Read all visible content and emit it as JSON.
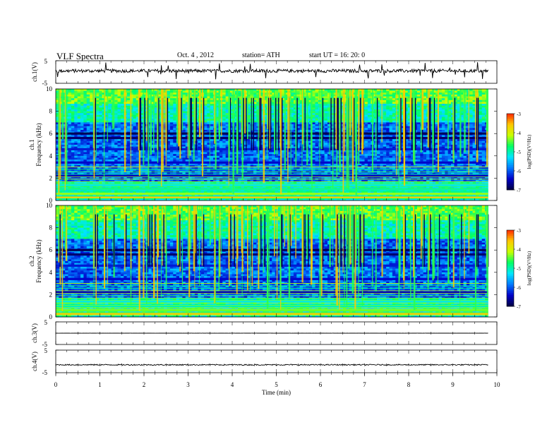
{
  "header": {
    "title": "VLF  Spectra",
    "date": "Oct. 4  , 2012",
    "station": "station= ATH",
    "start": "start  UT  =    16: 20: 0"
  },
  "colors": {
    "colormap": [
      "#000040",
      "#0000c8",
      "#0078ff",
      "#00e6ff",
      "#00ff64",
      "#c8ff00",
      "#ffc800",
      "#ff2800",
      "#ffffff"
    ],
    "trace": "#000000"
  },
  "chart_data": [
    {
      "type": "line",
      "panel": "ch.1 waveform",
      "ylabel": "ch.1(V)",
      "ylim": [
        -5,
        5
      ],
      "y_ticks": [
        "5",
        "-5"
      ],
      "xlim": [
        0,
        10
      ],
      "grid": false,
      "baseline": 0.5,
      "noise_amplitude": 1.5,
      "spikes": true
    },
    {
      "type": "heatmap",
      "panel": "ch.1 spectrogram",
      "ylabel": "ch.1\nFrequency  (kHz)",
      "ylim": [
        0,
        10
      ],
      "y_ticks": [
        "0",
        "2",
        "4",
        "6",
        "8",
        "10"
      ],
      "xlim": [
        0,
        9.8
      ],
      "colorbar": {
        "label": "log(PSD)(V²/Hz)",
        "range": [
          -7,
          -3
        ],
        "ticks": [
          "-3",
          "-4",
          "-5",
          "-6",
          "-7"
        ]
      },
      "bands": [
        {
          "f": 0.3,
          "level": -3.6
        },
        {
          "f": 0.6,
          "level": -4.3
        },
        {
          "f": 1.0,
          "level": -5.0
        },
        {
          "f": 1.4,
          "level": -5.2
        },
        {
          "f": 2.2,
          "level": -6.5
        },
        {
          "f": 3.4,
          "level": -6.4
        },
        {
          "f": 4.6,
          "level": -6.3
        },
        {
          "f": 5.6,
          "level": -6.8
        },
        {
          "f": 6.0,
          "level": -6.9
        }
      ]
    },
    {
      "type": "heatmap",
      "panel": "ch.2 spectrogram",
      "ylabel": "ch.2\nFrequency  (kHz)",
      "ylim": [
        0,
        10
      ],
      "y_ticks": [
        "0",
        "2",
        "4",
        "6",
        "8",
        "10"
      ],
      "xlim": [
        0,
        9.8
      ],
      "colorbar": {
        "label": "log(PSD)(V²/Hz)",
        "range": [
          -7,
          -3
        ],
        "ticks": [
          "-3",
          "-4",
          "-5",
          "-6",
          "-7"
        ]
      },
      "bands": [
        {
          "f": 0.3,
          "level": -3.6
        },
        {
          "f": 0.6,
          "level": -4.3
        },
        {
          "f": 1.0,
          "level": -5.0
        },
        {
          "f": 1.4,
          "level": -5.2
        },
        {
          "f": 2.2,
          "level": -6.5
        },
        {
          "f": 3.4,
          "level": -6.4
        },
        {
          "f": 4.6,
          "level": -6.3
        },
        {
          "f": 5.6,
          "level": -6.8
        },
        {
          "f": 6.0,
          "level": -6.9
        }
      ]
    },
    {
      "type": "line",
      "panel": "ch.3 waveform",
      "ylabel": "ch.3(V)",
      "ylim": [
        -5,
        5
      ],
      "y_ticks": [
        "5",
        "-5"
      ],
      "xlim": [
        0,
        10
      ],
      "grid": false,
      "baseline": 0,
      "noise_amplitude": 0.05,
      "spikes": false
    },
    {
      "type": "line",
      "panel": "ch.4 waveform",
      "ylabel": "ch.4(V)",
      "ylim": [
        -5,
        5
      ],
      "y_ticks": [
        "5",
        "-5"
      ],
      "xlim": [
        0,
        10
      ],
      "grid": false,
      "baseline": -1.5,
      "noise_amplitude": 0.5,
      "spikes": false
    }
  ],
  "x_axis": {
    "label": "Time  (min)",
    "ticks": [
      "0",
      "1",
      "2",
      "3",
      "4",
      "5",
      "6",
      "7",
      "8",
      "9",
      "10"
    ],
    "range": [
      0,
      10
    ]
  }
}
